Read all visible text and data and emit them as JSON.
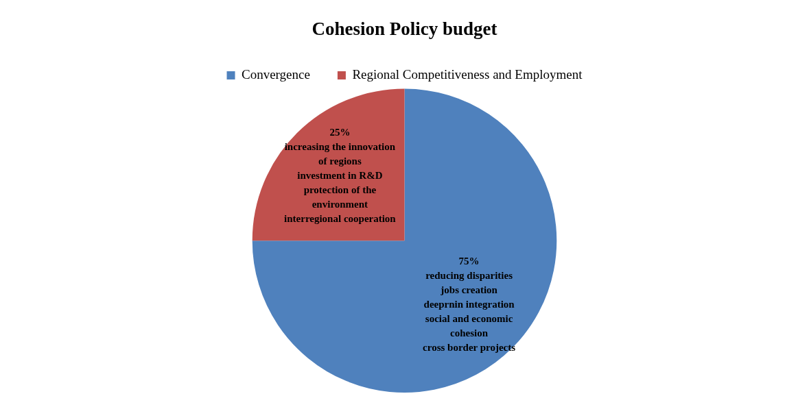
{
  "chart_data": {
    "type": "pie",
    "title": "Cohesion Policy budget",
    "categories": [
      "Convergence",
      "Regional Competitiveness and Employment"
    ],
    "values": [
      75,
      25
    ],
    "colors": [
      "#4f81bd",
      "#c0504d"
    ],
    "value_labels": [
      "75%\nreducing disparities\njobs creation\ndeeprnin integration\nsocial and economic\ncohesion\ncross border projects",
      "25%\nincreasing the innovation\nof regions\ninvestment in R&D\nprotection of the\nenvironment\ninterregional cooperation"
    ],
    "legend": "top"
  }
}
